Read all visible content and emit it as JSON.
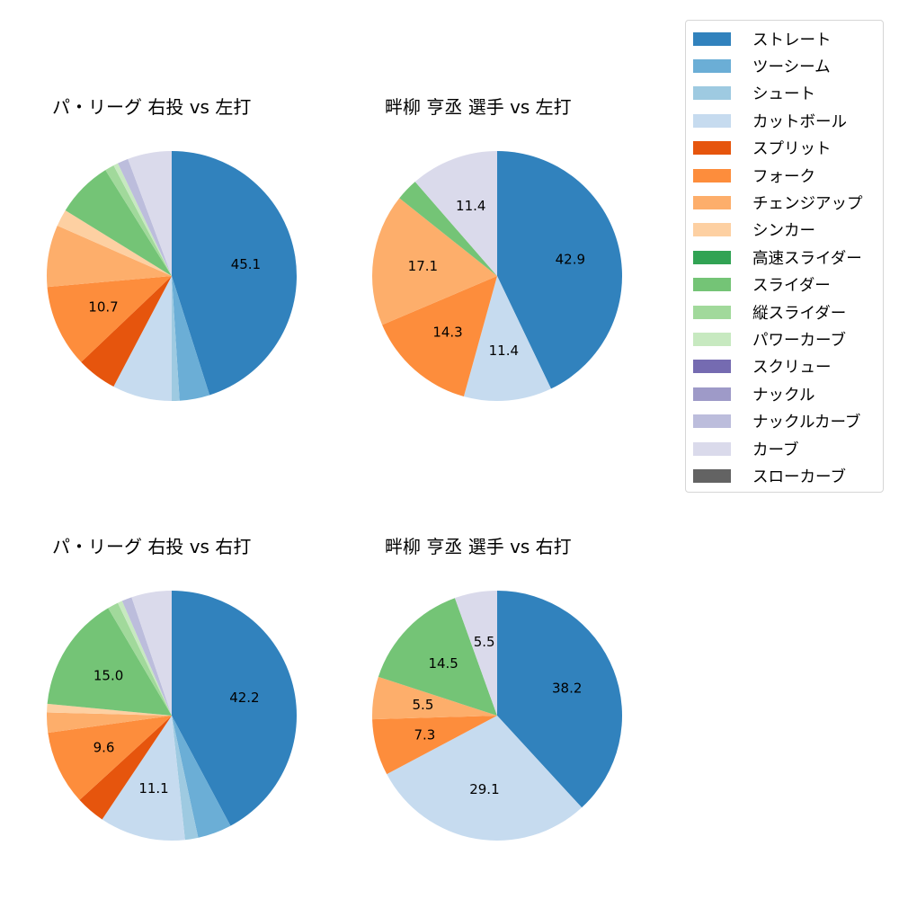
{
  "legend": {
    "items": [
      {
        "label": "ストレート",
        "color": "#3182bd"
      },
      {
        "label": "ツーシーム",
        "color": "#6baed6"
      },
      {
        "label": "シュート",
        "color": "#9ecae1"
      },
      {
        "label": "カットボール",
        "color": "#c6dbef"
      },
      {
        "label": "スプリット",
        "color": "#e6550d"
      },
      {
        "label": "フォーク",
        "color": "#fd8d3c"
      },
      {
        "label": "チェンジアップ",
        "color": "#fdae6b"
      },
      {
        "label": "シンカー",
        "color": "#fdd0a2"
      },
      {
        "label": "高速スライダー",
        "color": "#31a354"
      },
      {
        "label": "スライダー",
        "color": "#74c476"
      },
      {
        "label": "縦スライダー",
        "color": "#a1d99b"
      },
      {
        "label": "パワーカーブ",
        "color": "#c7e9c0"
      },
      {
        "label": "スクリュー",
        "color": "#756bb1"
      },
      {
        "label": "ナックル",
        "color": "#9e9ac8"
      },
      {
        "label": "ナックルカーブ",
        "color": "#bcbddc"
      },
      {
        "label": "カーブ",
        "color": "#dadaeb"
      },
      {
        "label": "スローカーブ",
        "color": "#636363"
      }
    ]
  },
  "chart_data": [
    {
      "type": "pie",
      "title": "パ・リーグ 右投 vs 左打",
      "categories": [
        "ストレート",
        "ツーシーム",
        "シュート",
        "カットボール",
        "スプリット",
        "フォーク",
        "チェンジアップ",
        "シンカー",
        "スライダー",
        "縦スライダー",
        "パワーカーブ",
        "ナックルカーブ",
        "カーブ"
      ],
      "values": [
        45.1,
        3.9,
        1.0,
        7.7,
        5.2,
        10.7,
        8.0,
        2.2,
        7.3,
        1.2,
        0.6,
        1.4,
        5.7
      ],
      "labels_shown": [
        "45.1",
        "10.7"
      ],
      "start_angle": 90,
      "direction": "clockwise"
    },
    {
      "type": "pie",
      "title": "畔柳 亨丞 選手 vs 左打",
      "categories": [
        "ストレート",
        "カットボール",
        "フォーク",
        "チェンジアップ",
        "スライダー",
        "カーブ"
      ],
      "values": [
        42.9,
        11.4,
        14.3,
        17.1,
        2.9,
        11.4
      ],
      "labels_shown": [
        "42.9",
        "11.4",
        "14.3",
        "17.1",
        "11.4"
      ],
      "start_angle": 90,
      "direction": "clockwise"
    },
    {
      "type": "pie",
      "title": "パ・リーグ 右投 vs 右打",
      "categories": [
        "ストレート",
        "ツーシーム",
        "シュート",
        "カットボール",
        "スプリット",
        "フォーク",
        "チェンジアップ",
        "シンカー",
        "スライダー",
        "縦スライダー",
        "パワーカーブ",
        "ナックルカーブ",
        "カーブ"
      ],
      "values": [
        42.2,
        4.4,
        1.7,
        11.1,
        3.8,
        9.6,
        2.6,
        1.1,
        15.0,
        1.4,
        0.6,
        1.3,
        5.2
      ],
      "labels_shown": [
        "42.2",
        "11.1",
        "9.6",
        "15.0"
      ],
      "start_angle": 90,
      "direction": "clockwise"
    },
    {
      "type": "pie",
      "title": "畔柳 亨丞 選手 vs 右打",
      "categories": [
        "ストレート",
        "カットボール",
        "フォーク",
        "チェンジアップ",
        "スライダー",
        "カーブ"
      ],
      "values": [
        38.2,
        29.1,
        7.3,
        5.5,
        14.5,
        5.5
      ],
      "labels_shown": [
        "38.2",
        "29.1",
        "7.3",
        "5.5",
        "14.5",
        "5.5"
      ],
      "start_angle": 90,
      "direction": "clockwise"
    }
  ],
  "pie_colors": {
    "ストレート": "#3182bd",
    "ツーシーム": "#6baed6",
    "シュート": "#9ecae1",
    "カットボール": "#c6dbef",
    "スプリット": "#e6550d",
    "フォーク": "#fd8d3c",
    "チェンジアップ": "#fdae6b",
    "シンカー": "#fdd0a2",
    "高速スライダー": "#31a354",
    "スライダー": "#74c476",
    "縦スライダー": "#a1d99b",
    "パワーカーブ": "#c7e9c0",
    "スクリュー": "#756bb1",
    "ナックル": "#9e9ac8",
    "ナックルカーブ": "#bcbddc",
    "カーブ": "#dadaeb",
    "スローカーブ": "#636363"
  }
}
